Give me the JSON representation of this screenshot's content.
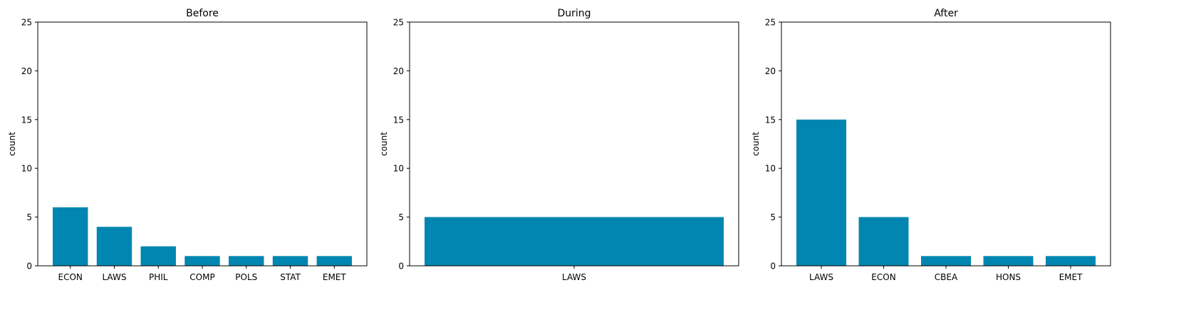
{
  "bar_color": "#0086b0",
  "chart_data": [
    {
      "type": "bar",
      "title": "Before",
      "xlabel": "",
      "ylabel": "count",
      "ylim": [
        0,
        25
      ],
      "yticks": [
        0,
        5,
        10,
        15,
        20,
        25
      ],
      "categories": [
        "ECON",
        "LAWS",
        "PHIL",
        "COMP",
        "POLS",
        "STAT",
        "EMET"
      ],
      "values": [
        6,
        4,
        2,
        1,
        1,
        1,
        1
      ]
    },
    {
      "type": "bar",
      "title": "During",
      "xlabel": "",
      "ylabel": "count",
      "ylim": [
        0,
        25
      ],
      "yticks": [
        0,
        5,
        10,
        15,
        20,
        25
      ],
      "categories": [
        "LAWS"
      ],
      "values": [
        5
      ]
    },
    {
      "type": "bar",
      "title": "After",
      "xlabel": "",
      "ylabel": "count",
      "ylim": [
        0,
        25
      ],
      "yticks": [
        0,
        5,
        10,
        15,
        20,
        25
      ],
      "categories": [
        "LAWS",
        "ECON",
        "CBEA",
        "HONS",
        "EMET"
      ],
      "values": [
        15,
        5,
        1,
        1,
        1
      ]
    }
  ]
}
